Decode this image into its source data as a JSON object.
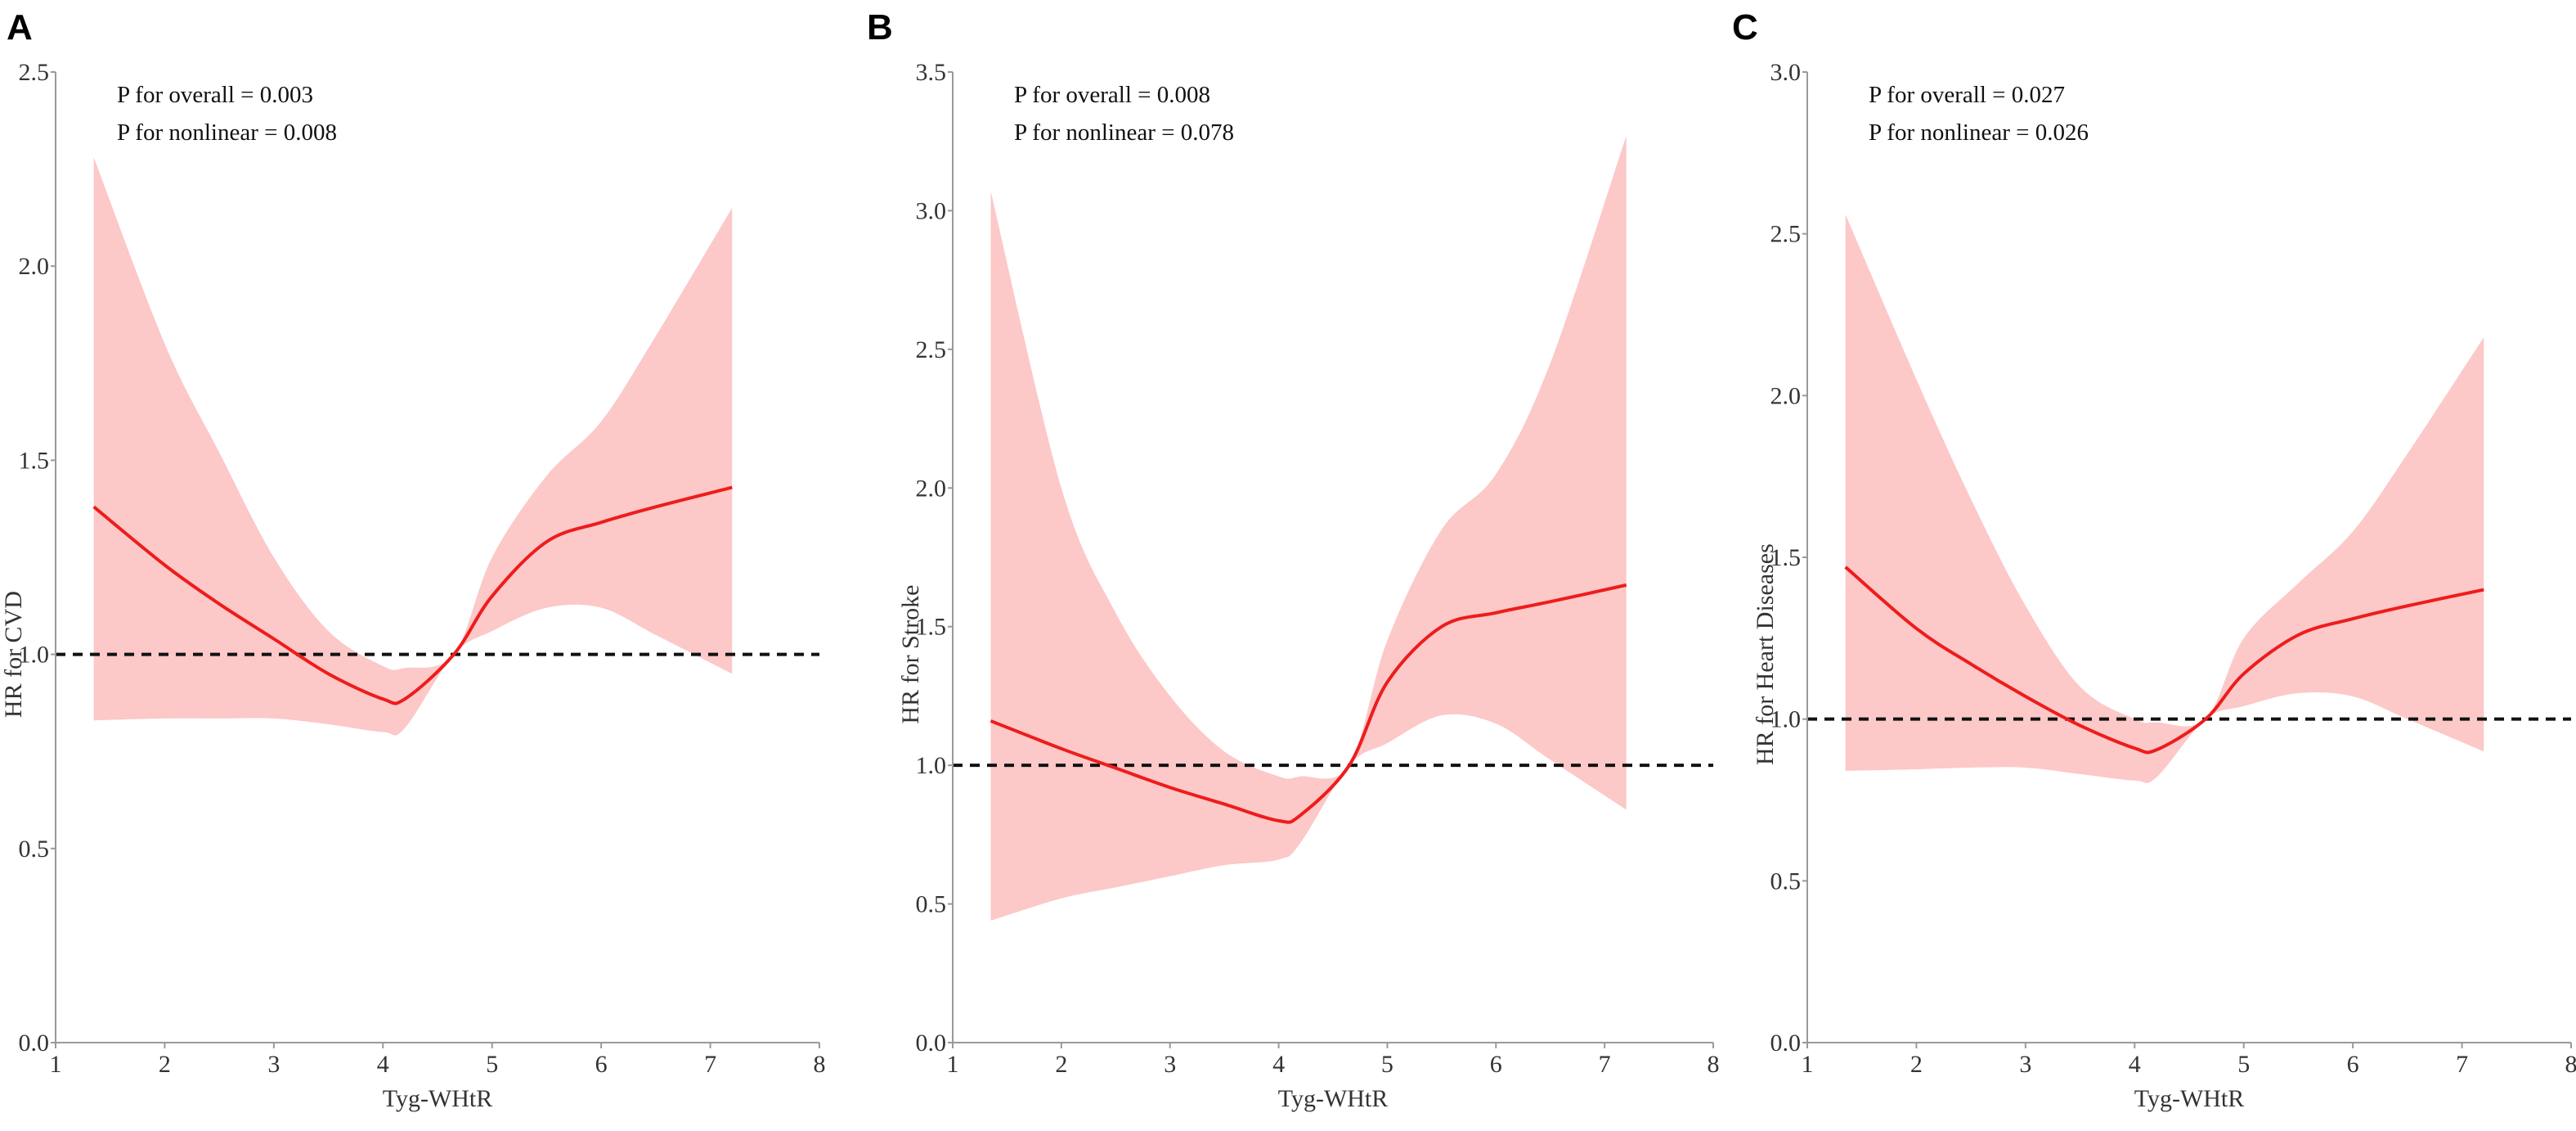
{
  "colors": {
    "line": "#ee1c1c",
    "band": "#fcc8c8",
    "ref": "#111111",
    "axis": "#999999"
  },
  "chart_data": [
    {
      "type": "line",
      "panel_label": "A",
      "xlabel": "Tyg-WHtR",
      "ylabel": "HR for CVD",
      "xlim": [
        1,
        8
      ],
      "ylim": [
        0,
        2.5
      ],
      "xticks": [
        "1",
        "2",
        "3",
        "4",
        "5",
        "6",
        "7",
        "8"
      ],
      "yticks": [
        "0.0",
        "0.5",
        "1.0",
        "1.5",
        "2.0",
        "2.5"
      ],
      "reference_line": 1.0,
      "annotations": [
        "P for overall = 0.003",
        "P for nonlinear = 0.008"
      ],
      "x": [
        1.35,
        2,
        2.5,
        3,
        3.5,
        4,
        4.2,
        4.65,
        5,
        5.5,
        6,
        6.5,
        7.2
      ],
      "hr": [
        1.38,
        1.23,
        1.13,
        1.04,
        0.95,
        0.885,
        0.885,
        1.0,
        1.15,
        1.29,
        1.34,
        1.38,
        1.43
      ],
      "upper": [
        2.28,
        1.8,
        1.52,
        1.25,
        1.06,
        0.97,
        0.965,
        1.0,
        1.25,
        1.46,
        1.6,
        1.82,
        2.15
      ],
      "lower": [
        0.83,
        0.835,
        0.835,
        0.835,
        0.82,
        0.8,
        0.81,
        1.0,
        1.06,
        1.12,
        1.12,
        1.05,
        0.95
      ]
    },
    {
      "type": "line",
      "panel_label": "B",
      "xlabel": "Tyg-WHtR",
      "ylabel": "HR for Stroke",
      "xlim": [
        1,
        8
      ],
      "ylim": [
        0,
        3.5
      ],
      "xticks": [
        "1",
        "2",
        "3",
        "4",
        "5",
        "6",
        "7",
        "8"
      ],
      "yticks": [
        "0.0",
        "0.5",
        "1.0",
        "1.5",
        "2.0",
        "2.5",
        "3.0",
        "3.5"
      ],
      "reference_line": 1.0,
      "annotations": [
        "P for overall = 0.008",
        "P for nonlinear = 0.078"
      ],
      "x": [
        1.35,
        2,
        2.5,
        3,
        3.5,
        4,
        4.2,
        4.65,
        5,
        5.5,
        6,
        6.5,
        7.2
      ],
      "hr": [
        1.16,
        1.06,
        0.99,
        0.92,
        0.86,
        0.8,
        0.82,
        1.0,
        1.3,
        1.5,
        1.55,
        1.59,
        1.65
      ],
      "upper": [
        3.07,
        2.0,
        1.55,
        1.25,
        1.05,
        0.96,
        0.96,
        1.0,
        1.45,
        1.85,
        2.05,
        2.45,
        3.27
      ],
      "lower": [
        0.44,
        0.52,
        0.56,
        0.6,
        0.64,
        0.66,
        0.72,
        1.0,
        1.08,
        1.18,
        1.15,
        1.02,
        0.84
      ]
    },
    {
      "type": "line",
      "panel_label": "C",
      "xlabel": "Tyg-WHtR",
      "ylabel": "HR for Heart Diseases",
      "xlim": [
        1,
        8
      ],
      "ylim": [
        0,
        3.0
      ],
      "xticks": [
        "1",
        "2",
        "3",
        "4",
        "5",
        "6",
        "7",
        "8"
      ],
      "yticks": [
        "0.0",
        "0.5",
        "1.0",
        "1.5",
        "2.0",
        "2.5",
        "3.0"
      ],
      "reference_line": 1.0,
      "annotations": [
        "P for overall = 0.027",
        "P for nonlinear = 0.026"
      ],
      "x": [
        1.35,
        2,
        2.5,
        3,
        3.5,
        4,
        4.2,
        4.65,
        5,
        5.5,
        6,
        6.5,
        7.2
      ],
      "hr": [
        1.47,
        1.28,
        1.17,
        1.07,
        0.98,
        0.91,
        0.905,
        1.0,
        1.14,
        1.26,
        1.31,
        1.35,
        1.4
      ],
      "upper": [
        2.56,
        2.05,
        1.68,
        1.35,
        1.1,
        1.0,
        0.99,
        1.0,
        1.25,
        1.42,
        1.58,
        1.82,
        2.18
      ],
      "lower": [
        0.84,
        0.845,
        0.85,
        0.85,
        0.83,
        0.81,
        0.82,
        1.0,
        1.04,
        1.08,
        1.07,
        1.0,
        0.9
      ]
    }
  ]
}
